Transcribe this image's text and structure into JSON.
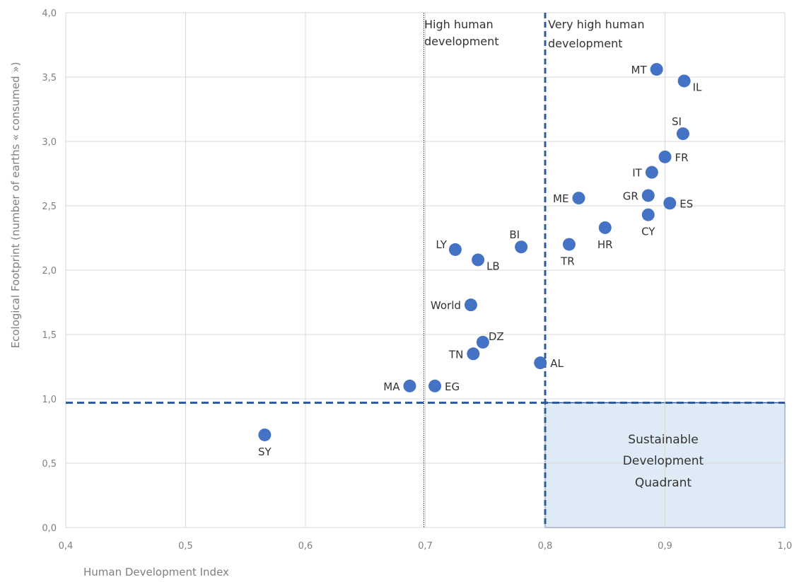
{
  "chart_data": {
    "type": "scatter",
    "xlabel": "Human Development Index",
    "ylabel": "Ecological Footprint (number of earths « consumed »)",
    "xlim": [
      0.4,
      1.0
    ],
    "ylim": [
      0.0,
      4.0
    ],
    "x_ticks": [
      "0,4",
      "0,5",
      "0,6",
      "0,7",
      "0,8",
      "0,9",
      "1,0"
    ],
    "y_ticks": [
      "0,0",
      "0,5",
      "1,0",
      "1,5",
      "2,0",
      "2,5",
      "3,0",
      "3,5",
      "4,0"
    ],
    "grid": true,
    "point_color": "#4472c4",
    "threshold_color": "#2e5c9a",
    "quadrant_fill": "#deebf7",
    "points": [
      {
        "label": "MT",
        "x": 0.893,
        "y": 3.56,
        "label_pos": "left"
      },
      {
        "label": "IL",
        "x": 0.916,
        "y": 3.47,
        "label_pos": "right-low"
      },
      {
        "label": "SI",
        "x": 0.915,
        "y": 3.06,
        "label_pos": "top-left"
      },
      {
        "label": "FR",
        "x": 0.9,
        "y": 2.88,
        "label_pos": "right"
      },
      {
        "label": "IT",
        "x": 0.889,
        "y": 2.76,
        "label_pos": "left"
      },
      {
        "label": "ME",
        "x": 0.828,
        "y": 2.56,
        "label_pos": "left"
      },
      {
        "label": "GR",
        "x": 0.886,
        "y": 2.58,
        "label_pos": "left"
      },
      {
        "label": "ES",
        "x": 0.904,
        "y": 2.52,
        "label_pos": "right"
      },
      {
        "label": "CY",
        "x": 0.886,
        "y": 2.43,
        "label_pos": "below"
      },
      {
        "label": "HR",
        "x": 0.85,
        "y": 2.33,
        "label_pos": "below"
      },
      {
        "label": "TR",
        "x": 0.82,
        "y": 2.2,
        "label_pos": "below-left"
      },
      {
        "label": "BI",
        "x": 0.78,
        "y": 2.18,
        "label_pos": "top-left"
      },
      {
        "label": "LY",
        "x": 0.725,
        "y": 2.16,
        "label_pos": "left-high"
      },
      {
        "label": "LB",
        "x": 0.744,
        "y": 2.08,
        "label_pos": "right-low"
      },
      {
        "label": "World",
        "x": 0.738,
        "y": 1.73,
        "label_pos": "left"
      },
      {
        "label": "DZ",
        "x": 0.748,
        "y": 1.44,
        "label_pos": "right-high"
      },
      {
        "label": "TN",
        "x": 0.74,
        "y": 1.35,
        "label_pos": "left"
      },
      {
        "label": "AL",
        "x": 0.796,
        "y": 1.28,
        "label_pos": "right"
      },
      {
        "label": "MA",
        "x": 0.687,
        "y": 1.1,
        "label_pos": "left"
      },
      {
        "label": "EG",
        "x": 0.708,
        "y": 1.1,
        "label_pos": "right"
      },
      {
        "label": "SY",
        "x": 0.566,
        "y": 0.72,
        "label_pos": "below"
      }
    ],
    "thresholds": {
      "high_hdi_x": 0.7,
      "very_high_hdi_x": 0.8,
      "footprint_y": 0.97
    },
    "annotations": {
      "high_line1": "High human",
      "high_line2": "development",
      "very_high_line1": "Very high human",
      "very_high_line2": "development",
      "quadrant_line1": "Sustainable",
      "quadrant_line2": "Development",
      "quadrant_line3": "Quadrant"
    }
  }
}
